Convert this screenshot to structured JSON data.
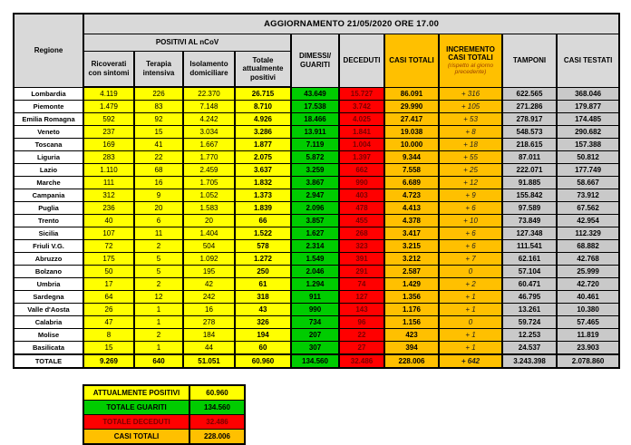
{
  "title": "AGGIORNAMENTO 21/05/2020 ORE 17.00",
  "colors": {
    "yellow": "#FFFF00",
    "green": "#00CC00",
    "red": "#FF0000",
    "red_text": "#7A0000",
    "orange": "#FFC000",
    "gray_header": "#D9D9D9",
    "gray_cell": "#C9C9C9",
    "note_text": "#9C4100"
  },
  "table": {
    "headers": {
      "regione": "Regione",
      "positivi_group": "POSITIVI AL nCoV",
      "ricoverati": "Ricoverati con sintomi",
      "terapia": "Terapia intensiva",
      "isolamento": "Isolamento domiciliare",
      "totale_positivi": "Totale attualmente positivi",
      "dimessi": "DIMESSI/ GUARITI",
      "deceduti": "DECEDUTI",
      "casi_totali": "CASI TOTALI",
      "incremento": "INCREMENTO CASI  TOTALI",
      "incremento_note": "(rispetto al giorno precedente)",
      "tamponi": "TAMPONI",
      "casi_testati": "CASI TESTATI"
    },
    "rows": [
      [
        "Lombardia",
        "4.119",
        "226",
        "22.370",
        "26.715",
        "43.649",
        "15.727",
        "86.091",
        "+ 316",
        "622.565",
        "368.046"
      ],
      [
        "Piemonte",
        "1.479",
        "83",
        "7.148",
        "8.710",
        "17.538",
        "3.742",
        "29.990",
        "+ 105",
        "271.286",
        "179.877"
      ],
      [
        "Emilia Romagna",
        "592",
        "92",
        "4.242",
        "4.926",
        "18.466",
        "4.025",
        "27.417",
        "+ 53",
        "278.917",
        "174.485"
      ],
      [
        "Veneto",
        "237",
        "15",
        "3.034",
        "3.286",
        "13.911",
        "1.841",
        "19.038",
        "+ 8",
        "548.573",
        "290.682"
      ],
      [
        "Toscana",
        "169",
        "41",
        "1.667",
        "1.877",
        "7.119",
        "1.004",
        "10.000",
        "+ 18",
        "218.615",
        "157.388"
      ],
      [
        "Liguria",
        "283",
        "22",
        "1.770",
        "2.075",
        "5.872",
        "1.397",
        "9.344",
        "+ 55",
        "87.011",
        "50.812"
      ],
      [
        "Lazio",
        "1.110",
        "68",
        "2.459",
        "3.637",
        "3.259",
        "662",
        "7.558",
        "+ 25",
        "222.071",
        "177.749"
      ],
      [
        "Marche",
        "111",
        "16",
        "1.705",
        "1.832",
        "3.867",
        "990",
        "6.689",
        "+ 12",
        "91.885",
        "58.667"
      ],
      [
        "Campania",
        "312",
        "9",
        "1.052",
        "1.373",
        "2.947",
        "403",
        "4.723",
        "+ 9",
        "155.842",
        "73.912"
      ],
      [
        "Puglia",
        "236",
        "20",
        "1.583",
        "1.839",
        "2.096",
        "478",
        "4.413",
        "+ 6",
        "97.589",
        "67.562"
      ],
      [
        "Trento",
        "40",
        "6",
        "20",
        "66",
        "3.857",
        "455",
        "4.378",
        "+ 10",
        "73.849",
        "42.954"
      ],
      [
        "Sicilia",
        "107",
        "11",
        "1.404",
        "1.522",
        "1.627",
        "268",
        "3.417",
        "+ 6",
        "127.348",
        "112.329"
      ],
      [
        "Friuli V.G.",
        "72",
        "2",
        "504",
        "578",
        "2.314",
        "323",
        "3.215",
        "+ 6",
        "111.541",
        "68.882"
      ],
      [
        "Abruzzo",
        "175",
        "5",
        "1.092",
        "1.272",
        "1.549",
        "391",
        "3.212",
        "+ 7",
        "62.161",
        "42.768"
      ],
      [
        "Bolzano",
        "50",
        "5",
        "195",
        "250",
        "2.046",
        "291",
        "2.587",
        "0",
        "57.104",
        "25.999"
      ],
      [
        "Umbria",
        "17",
        "2",
        "42",
        "61",
        "1.294",
        "74",
        "1.429",
        "+ 2",
        "60.471",
        "42.720"
      ],
      [
        "Sardegna",
        "64",
        "12",
        "242",
        "318",
        "911",
        "127",
        "1.356",
        "+ 1",
        "46.795",
        "40.461"
      ],
      [
        "Valle d'Aosta",
        "26",
        "1",
        "16",
        "43",
        "990",
        "143",
        "1.176",
        "+ 1",
        "13.261",
        "10.380"
      ],
      [
        "Calabria",
        "47",
        "1",
        "278",
        "326",
        "734",
        "96",
        "1.156",
        "0",
        "59.724",
        "57.465"
      ],
      [
        "Molise",
        "8",
        "2",
        "184",
        "194",
        "207",
        "22",
        "423",
        "+ 1",
        "12.253",
        "11.819"
      ],
      [
        "Basilicata",
        "15",
        "1",
        "44",
        "60",
        "307",
        "27",
        "394",
        "+ 1",
        "24.537",
        "23.903"
      ]
    ],
    "total_row": [
      "TOTALE",
      "9.269",
      "640",
      "51.051",
      "60.960",
      "134.560",
      "32.486",
      "228.006",
      "+ 642",
      "3.243.398",
      "2.078.860"
    ]
  },
  "summary": [
    {
      "label": "ATTUALMENTE POSITIVI",
      "value": "60.960",
      "color": "yellow"
    },
    {
      "label": "TOTALE GUARITI",
      "value": "134.560",
      "color": "green"
    },
    {
      "label": "TOTALE DECEDUTI",
      "value": "32.486",
      "color": "red"
    },
    {
      "label": "CASI TOTALI",
      "value": "228.006",
      "color": "orange"
    }
  ]
}
